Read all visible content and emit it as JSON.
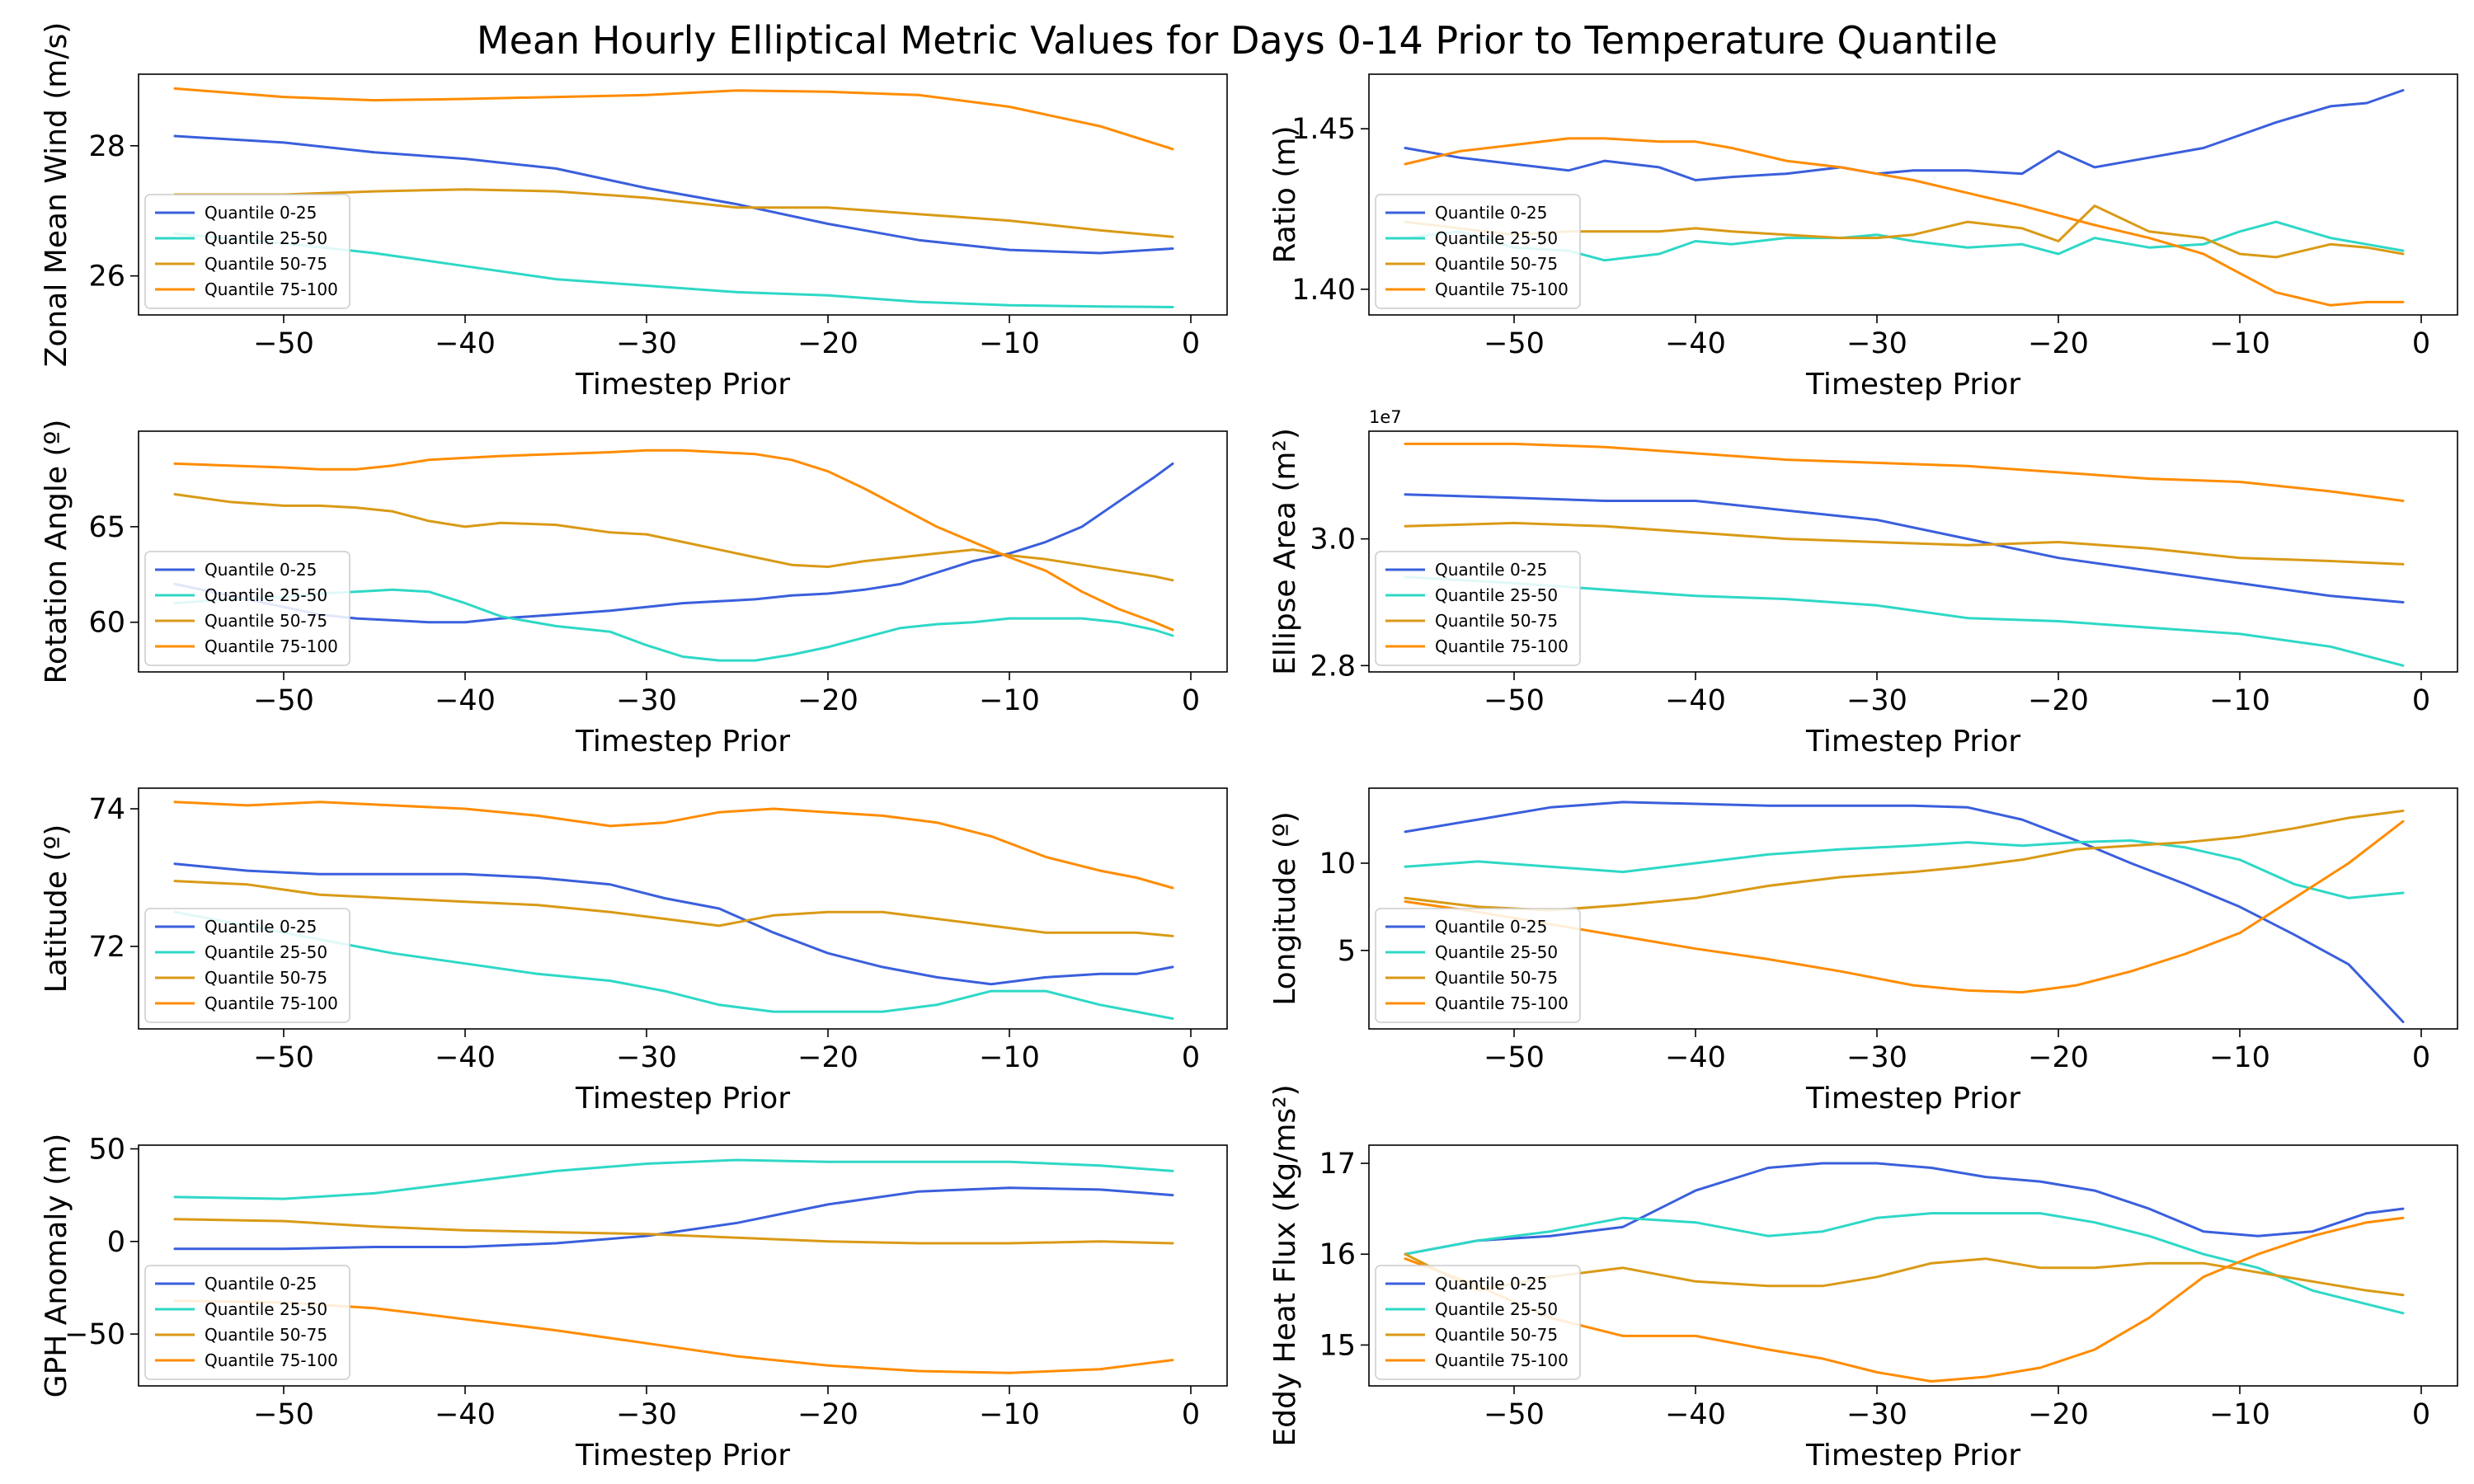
{
  "figure": {
    "title": "Mean Hourly Elliptical Metric Values for Days 0-14 Prior to Temperature Quantile"
  },
  "series_colors": {
    "Quantile 0-25": "#3a5fdc",
    "Quantile 25-50": "#2ed8c6",
    "Quantile 50-75": "#d99a16",
    "Quantile 75-100": "#ff8c00"
  },
  "chart_data": [
    {
      "type": "line",
      "xlabel": "Timestep Prior",
      "ylabel": "Zonal Mean Wind (m/s)",
      "xlim": [
        -58,
        2
      ],
      "ylim": [
        25.4,
        29.1
      ],
      "xticks": [
        -50,
        -40,
        -30,
        -20,
        -10,
        0
      ],
      "yticks": [
        26,
        28
      ],
      "legend_loc": "lower left",
      "x": [
        -56,
        -50,
        -45,
        -40,
        -35,
        -30,
        -25,
        -20,
        -15,
        -10,
        -5,
        -1
      ],
      "series": [
        {
          "name": "Quantile 0-25",
          "values": [
            28.15,
            28.05,
            27.9,
            27.8,
            27.65,
            27.35,
            27.1,
            26.8,
            26.55,
            26.4,
            26.35,
            26.42
          ]
        },
        {
          "name": "Quantile 25-50",
          "values": [
            26.65,
            26.5,
            26.35,
            26.15,
            25.95,
            25.85,
            25.75,
            25.7,
            25.6,
            25.55,
            25.53,
            25.52
          ]
        },
        {
          "name": "Quantile 50-75",
          "values": [
            27.25,
            27.25,
            27.3,
            27.33,
            27.3,
            27.2,
            27.05,
            27.05,
            26.95,
            26.85,
            26.7,
            26.6
          ]
        },
        {
          "name": "Quantile 75-100",
          "values": [
            28.88,
            28.75,
            28.7,
            28.72,
            28.75,
            28.78,
            28.85,
            28.83,
            28.78,
            28.6,
            28.3,
            27.95
          ]
        }
      ]
    },
    {
      "type": "line",
      "xlabel": "Timestep Prior",
      "ylabel": "Ratio (m)",
      "xlim": [
        -58,
        2
      ],
      "ylim": [
        1.392,
        1.467
      ],
      "xticks": [
        -50,
        -40,
        -30,
        -20,
        -10,
        0
      ],
      "yticks": [
        1.4,
        1.45
      ],
      "ytick_labels": [
        "1.40",
        "1.45"
      ],
      "legend_loc": "lower left",
      "x": [
        -56,
        -53,
        -50,
        -47,
        -45,
        -42,
        -40,
        -38,
        -35,
        -32,
        -30,
        -28,
        -25,
        -22,
        -20,
        -18,
        -15,
        -12,
        -10,
        -8,
        -5,
        -3,
        -1
      ],
      "series": [
        {
          "name": "Quantile 0-25",
          "values": [
            1.444,
            1.441,
            1.439,
            1.437,
            1.44,
            1.438,
            1.434,
            1.435,
            1.436,
            1.438,
            1.436,
            1.437,
            1.437,
            1.436,
            1.443,
            1.438,
            1.441,
            1.444,
            1.448,
            1.452,
            1.457,
            1.458,
            1.462
          ]
        },
        {
          "name": "Quantile 25-50",
          "values": [
            1.416,
            1.418,
            1.413,
            1.412,
            1.409,
            1.411,
            1.415,
            1.414,
            1.416,
            1.416,
            1.417,
            1.415,
            1.413,
            1.414,
            1.411,
            1.416,
            1.413,
            1.414,
            1.418,
            1.421,
            1.416,
            1.414,
            1.412
          ]
        },
        {
          "name": "Quantile 50-75",
          "values": [
            1.421,
            1.419,
            1.417,
            1.418,
            1.418,
            1.418,
            1.419,
            1.418,
            1.417,
            1.416,
            1.416,
            1.417,
            1.421,
            1.419,
            1.415,
            1.426,
            1.418,
            1.416,
            1.411,
            1.41,
            1.414,
            1.413,
            1.411
          ]
        },
        {
          "name": "Quantile 75-100",
          "values": [
            1.439,
            1.443,
            1.445,
            1.447,
            1.447,
            1.446,
            1.446,
            1.444,
            1.44,
            1.438,
            1.436,
            1.434,
            1.43,
            1.426,
            1.423,
            1.42,
            1.416,
            1.411,
            1.405,
            1.399,
            1.395,
            1.396,
            1.396
          ]
        }
      ]
    },
    {
      "type": "line",
      "xlabel": "Timestep Prior",
      "ylabel": "Rotation Angle (º)",
      "xlim": [
        -58,
        2
      ],
      "ylim": [
        57.4,
        70.0
      ],
      "xticks": [
        -50,
        -40,
        -30,
        -20,
        -10,
        0
      ],
      "yticks": [
        60,
        65
      ],
      "legend_loc": "lower left",
      "x": [
        -56,
        -53,
        -50,
        -48,
        -46,
        -44,
        -42,
        -40,
        -38,
        -35,
        -32,
        -30,
        -28,
        -26,
        -24,
        -22,
        -20,
        -18,
        -16,
        -14,
        -12,
        -10,
        -8,
        -6,
        -4,
        -2,
        -1
      ],
      "series": [
        {
          "name": "Quantile 0-25",
          "values": [
            62.0,
            61.4,
            60.8,
            60.4,
            60.2,
            60.1,
            60.0,
            60.0,
            60.2,
            60.4,
            60.6,
            60.8,
            61.0,
            61.1,
            61.2,
            61.4,
            61.5,
            61.7,
            62.0,
            62.6,
            63.2,
            63.6,
            64.2,
            65.0,
            66.3,
            67.6,
            68.3
          ]
        },
        {
          "name": "Quantile 25-50",
          "values": [
            61.0,
            61.2,
            61.3,
            61.5,
            61.6,
            61.7,
            61.6,
            61.0,
            60.3,
            59.8,
            59.5,
            58.8,
            58.2,
            58.0,
            58.0,
            58.3,
            58.7,
            59.2,
            59.7,
            59.9,
            60.0,
            60.2,
            60.2,
            60.2,
            60.0,
            59.6,
            59.3
          ]
        },
        {
          "name": "Quantile 50-75",
          "values": [
            66.7,
            66.3,
            66.1,
            66.1,
            66.0,
            65.8,
            65.3,
            65.0,
            65.2,
            65.1,
            64.7,
            64.6,
            64.2,
            63.8,
            63.4,
            63.0,
            62.9,
            63.2,
            63.4,
            63.6,
            63.8,
            63.5,
            63.3,
            63.0,
            62.7,
            62.4,
            62.2
          ]
        },
        {
          "name": "Quantile 75-100",
          "values": [
            68.3,
            68.2,
            68.1,
            68.0,
            68.0,
            68.2,
            68.5,
            68.6,
            68.7,
            68.8,
            68.9,
            69.0,
            69.0,
            68.9,
            68.8,
            68.5,
            67.9,
            67.0,
            66.0,
            65.0,
            64.2,
            63.4,
            62.7,
            61.6,
            60.7,
            60.0,
            59.6
          ]
        }
      ]
    },
    {
      "type": "line",
      "xlabel": "Timestep Prior",
      "ylabel": "Ellipse Area (m²)",
      "offset_text": "1e7",
      "xlim": [
        -58,
        2
      ],
      "ylim": [
        2.79,
        3.17
      ],
      "xticks": [
        -50,
        -40,
        -30,
        -20,
        -10,
        0
      ],
      "yticks": [
        2.8,
        3.0
      ],
      "ytick_labels": [
        "2.8",
        "3.0"
      ],
      "legend_loc": "lower left",
      "x": [
        -56,
        -50,
        -45,
        -40,
        -35,
        -30,
        -25,
        -20,
        -15,
        -10,
        -5,
        -1
      ],
      "series": [
        {
          "name": "Quantile 0-25",
          "values": [
            3.07,
            3.065,
            3.06,
            3.06,
            3.045,
            3.03,
            3.0,
            2.97,
            2.95,
            2.93,
            2.91,
            2.9
          ]
        },
        {
          "name": "Quantile 25-50",
          "values": [
            2.94,
            2.93,
            2.92,
            2.91,
            2.905,
            2.895,
            2.875,
            2.87,
            2.86,
            2.85,
            2.83,
            2.8
          ]
        },
        {
          "name": "Quantile 50-75",
          "values": [
            3.02,
            3.025,
            3.02,
            3.01,
            3.0,
            2.995,
            2.99,
            2.995,
            2.985,
            2.97,
            2.965,
            2.96
          ]
        },
        {
          "name": "Quantile 75-100",
          "values": [
            3.15,
            3.15,
            3.145,
            3.135,
            3.125,
            3.12,
            3.115,
            3.105,
            3.095,
            3.09,
            3.075,
            3.06
          ]
        }
      ]
    },
    {
      "type": "line",
      "xlabel": "Timestep Prior",
      "ylabel": "Latitude (º)",
      "xlim": [
        -58,
        2
      ],
      "ylim": [
        70.8,
        74.3
      ],
      "xticks": [
        -50,
        -40,
        -30,
        -20,
        -10,
        0
      ],
      "yticks": [
        72,
        74
      ],
      "legend_loc": "lower left",
      "x": [
        -56,
        -52,
        -48,
        -44,
        -40,
        -36,
        -32,
        -29,
        -26,
        -23,
        -20,
        -17,
        -14,
        -11,
        -8,
        -5,
        -3,
        -1
      ],
      "series": [
        {
          "name": "Quantile 0-25",
          "values": [
            73.2,
            73.1,
            73.05,
            73.05,
            73.05,
            73.0,
            72.9,
            72.7,
            72.55,
            72.2,
            71.9,
            71.7,
            71.55,
            71.45,
            71.55,
            71.6,
            71.6,
            71.7
          ]
        },
        {
          "name": "Quantile 25-50",
          "values": [
            72.5,
            72.3,
            72.1,
            71.9,
            71.75,
            71.6,
            71.5,
            71.35,
            71.15,
            71.05,
            71.05,
            71.05,
            71.15,
            71.35,
            71.35,
            71.15,
            71.05,
            70.95
          ]
        },
        {
          "name": "Quantile 50-75",
          "values": [
            72.95,
            72.9,
            72.75,
            72.7,
            72.65,
            72.6,
            72.5,
            72.4,
            72.3,
            72.45,
            72.5,
            72.5,
            72.4,
            72.3,
            72.2,
            72.2,
            72.2,
            72.15
          ]
        },
        {
          "name": "Quantile 75-100",
          "values": [
            74.1,
            74.05,
            74.1,
            74.05,
            74.0,
            73.9,
            73.75,
            73.8,
            73.95,
            74.0,
            73.95,
            73.9,
            73.8,
            73.6,
            73.3,
            73.1,
            73.0,
            72.85
          ]
        }
      ]
    },
    {
      "type": "line",
      "xlabel": "Timestep Prior",
      "ylabel": "Longitude (º)",
      "xlim": [
        -58,
        2
      ],
      "ylim": [
        0.5,
        14.3
      ],
      "xticks": [
        -50,
        -40,
        -30,
        -20,
        -10,
        0
      ],
      "yticks": [
        5,
        10
      ],
      "legend_loc": "lower left",
      "x": [
        -56,
        -52,
        -48,
        -44,
        -40,
        -36,
        -32,
        -28,
        -25,
        -22,
        -19,
        -16,
        -13,
        -10,
        -7,
        -4,
        -1
      ],
      "series": [
        {
          "name": "Quantile 0-25",
          "values": [
            11.8,
            12.5,
            13.2,
            13.5,
            13.4,
            13.3,
            13.3,
            13.3,
            13.2,
            12.5,
            11.3,
            10.0,
            8.8,
            7.5,
            5.9,
            4.2,
            0.9
          ]
        },
        {
          "name": "Quantile 25-50",
          "values": [
            9.8,
            10.1,
            9.8,
            9.5,
            10.0,
            10.5,
            10.8,
            11.0,
            11.2,
            11.0,
            11.2,
            11.3,
            10.9,
            10.2,
            8.8,
            8.0,
            8.3
          ]
        },
        {
          "name": "Quantile 50-75",
          "values": [
            8.0,
            7.5,
            7.3,
            7.6,
            8.0,
            8.7,
            9.2,
            9.5,
            9.8,
            10.2,
            10.8,
            11.0,
            11.2,
            11.5,
            12.0,
            12.6,
            13.0
          ]
        },
        {
          "name": "Quantile 75-100",
          "values": [
            7.8,
            7.2,
            6.5,
            5.8,
            5.1,
            4.5,
            3.8,
            3.0,
            2.7,
            2.6,
            3.0,
            3.8,
            4.8,
            6.0,
            8.0,
            10.0,
            12.4
          ]
        }
      ]
    },
    {
      "type": "line",
      "xlabel": "Timestep Prior",
      "ylabel": "GPH Anomaly (m)",
      "xlim": [
        -58,
        2
      ],
      "ylim": [
        -78,
        52
      ],
      "xticks": [
        -50,
        -40,
        -30,
        -20,
        -10,
        0
      ],
      "yticks": [
        -50,
        0,
        50
      ],
      "legend_loc": "lower left",
      "x": [
        -56,
        -50,
        -45,
        -40,
        -35,
        -30,
        -25,
        -20,
        -15,
        -10,
        -5,
        -1
      ],
      "series": [
        {
          "name": "Quantile 0-25",
          "values": [
            -4,
            -4,
            -3,
            -3,
            -1,
            3,
            10,
            20,
            27,
            29,
            28,
            25
          ]
        },
        {
          "name": "Quantile 25-50",
          "values": [
            24,
            23,
            26,
            32,
            38,
            42,
            44,
            43,
            43,
            43,
            41,
            38
          ]
        },
        {
          "name": "Quantile 50-75",
          "values": [
            12,
            11,
            8,
            6,
            5,
            4,
            2,
            0,
            -1,
            -1,
            0,
            -1
          ]
        },
        {
          "name": "Quantile 75-100",
          "values": [
            -32,
            -33,
            -36,
            -42,
            -48,
            -55,
            -62,
            -67,
            -70,
            -71,
            -69,
            -64
          ]
        }
      ]
    },
    {
      "type": "line",
      "xlabel": "Timestep Prior",
      "ylabel": "Eddy Heat Flux (Kg/ms²)",
      "xlim": [
        -58,
        2
      ],
      "ylim": [
        14.55,
        17.2
      ],
      "xticks": [
        -50,
        -40,
        -30,
        -20,
        -10,
        0
      ],
      "yticks": [
        15,
        16,
        17
      ],
      "legend_loc": "lower left",
      "x": [
        -56,
        -52,
        -48,
        -44,
        -40,
        -36,
        -33,
        -30,
        -27,
        -24,
        -21,
        -18,
        -15,
        -12,
        -9,
        -6,
        -3,
        -1
      ],
      "series": [
        {
          "name": "Quantile 0-25",
          "values": [
            16.0,
            16.15,
            16.2,
            16.3,
            16.7,
            16.95,
            17.0,
            17.0,
            16.95,
            16.85,
            16.8,
            16.7,
            16.5,
            16.25,
            16.2,
            16.25,
            16.45,
            16.5
          ]
        },
        {
          "name": "Quantile 25-50",
          "values": [
            16.0,
            16.15,
            16.25,
            16.4,
            16.35,
            16.2,
            16.25,
            16.4,
            16.45,
            16.45,
            16.45,
            16.35,
            16.2,
            16.0,
            15.85,
            15.6,
            15.45,
            15.35
          ]
        },
        {
          "name": "Quantile 50-75",
          "values": [
            16.0,
            15.6,
            15.75,
            15.85,
            15.7,
            15.65,
            15.65,
            15.75,
            15.9,
            15.95,
            15.85,
            15.85,
            15.9,
            15.9,
            15.8,
            15.7,
            15.6,
            15.55
          ]
        },
        {
          "name": "Quantile 75-100",
          "values": [
            15.95,
            15.65,
            15.3,
            15.1,
            15.1,
            14.95,
            14.85,
            14.7,
            14.6,
            14.65,
            14.75,
            14.95,
            15.3,
            15.75,
            16.0,
            16.2,
            16.35,
            16.4
          ]
        }
      ]
    }
  ]
}
